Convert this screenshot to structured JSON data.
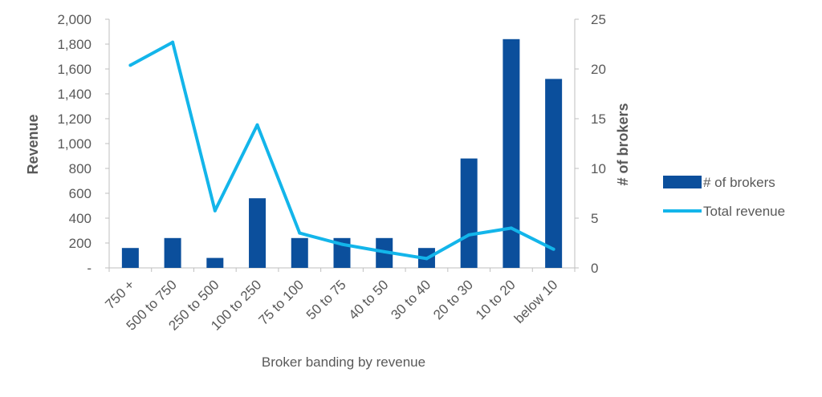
{
  "chart_data": {
    "type": "bar",
    "categories": [
      "750 +",
      "500 to 750",
      "250 to 500",
      "100 to 250",
      "75 to 100",
      "50 to 75",
      "40 to 50",
      "30 to 40",
      "20 to 30",
      "10 to 20",
      "below 10"
    ],
    "xlabel": "Broker banding by revenue",
    "ylabel": "Revenue",
    "y2label": "# of brokers",
    "ylim": [
      0,
      2000
    ],
    "y2lim": [
      0,
      25
    ],
    "yticks": [
      "-",
      "200",
      "400",
      "600",
      "800",
      "1,000",
      "1,200",
      "1,400",
      "1,600",
      "1,800",
      "2,000"
    ],
    "y2ticks": [
      "0",
      "5",
      "10",
      "15",
      "20",
      "25"
    ],
    "series": [
      {
        "name": "# of brokers",
        "type": "bar",
        "axis": "right",
        "color": "#0b4f9c",
        "values": [
          2,
          3,
          1,
          7,
          3,
          3,
          3,
          2,
          11,
          23,
          19
        ]
      },
      {
        "name": "Total revenue",
        "type": "line",
        "axis": "left",
        "color": "#13b5ea",
        "values": [
          1630,
          1815,
          460,
          1150,
          280,
          190,
          130,
          75,
          265,
          320,
          150
        ]
      }
    ],
    "legend_position": "right",
    "grid": false
  }
}
